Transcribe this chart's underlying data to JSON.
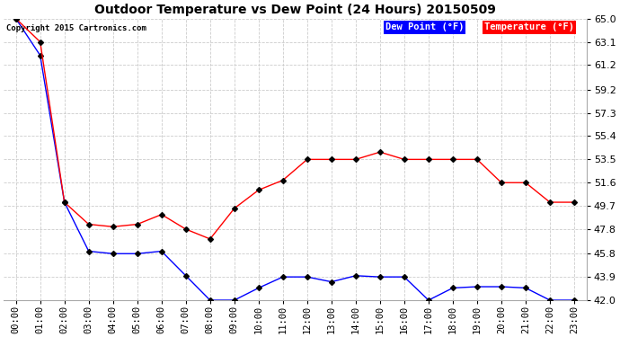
{
  "title": "Outdoor Temperature vs Dew Point (24 Hours) 20150509",
  "copyright": "Copyright 2015 Cartronics.com",
  "background_color": "#ffffff",
  "plot_background": "#ffffff",
  "grid_color": "#cccccc",
  "x_labels": [
    "00:00",
    "01:00",
    "02:00",
    "03:00",
    "04:00",
    "05:00",
    "06:00",
    "07:00",
    "08:00",
    "09:00",
    "10:00",
    "11:00",
    "12:00",
    "13:00",
    "14:00",
    "15:00",
    "16:00",
    "17:00",
    "18:00",
    "19:00",
    "20:00",
    "21:00",
    "22:00",
    "23:00"
  ],
  "y_ticks": [
    42.0,
    43.9,
    45.8,
    47.8,
    49.7,
    51.6,
    53.5,
    55.4,
    57.3,
    59.2,
    61.2,
    63.1,
    65.0
  ],
  "ylim": [
    42.0,
    65.0
  ],
  "temperature": [
    65.0,
    63.1,
    50.0,
    48.2,
    48.0,
    48.2,
    49.0,
    47.8,
    47.0,
    49.5,
    51.0,
    51.8,
    53.5,
    53.5,
    53.5,
    54.1,
    53.5,
    53.5,
    53.5,
    53.5,
    51.6,
    51.6,
    50.0,
    50.0
  ],
  "dew_point": [
    65.0,
    62.0,
    50.0,
    46.0,
    45.8,
    45.8,
    46.0,
    44.0,
    42.0,
    42.0,
    43.0,
    43.9,
    43.9,
    43.5,
    44.0,
    43.9,
    43.9,
    42.0,
    43.0,
    43.1,
    43.1,
    43.0,
    42.0,
    42.0
  ],
  "temp_color": "#ff0000",
  "dew_color": "#0000ff",
  "legend_dew_bg": "#0000ff",
  "legend_temp_bg": "#ff0000",
  "legend_text_color": "#ffffff",
  "marker_color": "#000000"
}
